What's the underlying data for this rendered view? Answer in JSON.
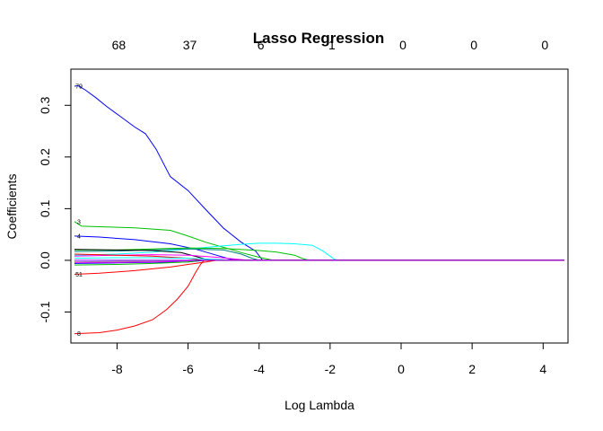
{
  "chart_data": {
    "type": "line",
    "title": "Lasso Regression",
    "xlabel": "Log Lambda",
    "ylabel": "Coefficients",
    "xlim": [
      -9.3,
      4.7
    ],
    "ylim": [
      -0.16,
      0.37
    ],
    "x_ticks": [
      -8,
      -6,
      -4,
      -2,
      0,
      2,
      4
    ],
    "y_ticks": [
      -0.1,
      0.0,
      0.1,
      0.2,
      0.3
    ],
    "y_tick_labels": [
      "-0.1",
      "0.0",
      "0.1",
      "0.2",
      "0.3"
    ],
    "top_axis": {
      "label_positions": [
        -7.95,
        -5.95,
        -3.95,
        -1.95,
        0.05,
        2.05,
        4.05
      ],
      "labels": [
        "68",
        "37",
        "6",
        "1",
        "0",
        "0",
        "0"
      ]
    },
    "grid": false,
    "series": [
      {
        "label": "79",
        "color": "#0000ff",
        "points": [
          [
            -9.2,
            0.337
          ],
          [
            -9.1,
            0.338
          ],
          [
            -8.9,
            0.33
          ],
          [
            -8.6,
            0.315
          ],
          [
            -8.3,
            0.298
          ],
          [
            -7.9,
            0.278
          ],
          [
            -7.5,
            0.258
          ],
          [
            -7.2,
            0.245
          ],
          [
            -6.9,
            0.215
          ],
          [
            -6.5,
            0.162
          ],
          [
            -6.0,
            0.135
          ],
          [
            -5.5,
            0.098
          ],
          [
            -5.0,
            0.062
          ],
          [
            -4.5,
            0.035
          ],
          [
            -4.1,
            0.018
          ],
          [
            -3.9,
            0.0
          ],
          [
            4.6,
            0.0
          ]
        ]
      },
      {
        "label": "3",
        "color": "#00c000",
        "points": [
          [
            -9.2,
            0.075
          ],
          [
            -9.0,
            0.066
          ],
          [
            -8.5,
            0.065
          ],
          [
            -7.5,
            0.063
          ],
          [
            -6.5,
            0.058
          ],
          [
            -6.0,
            0.047
          ],
          [
            -5.5,
            0.035
          ],
          [
            -5.0,
            0.025
          ],
          [
            -4.5,
            0.015
          ],
          [
            -4.0,
            0.006
          ],
          [
            -3.6,
            0.0
          ],
          [
            4.6,
            0.0
          ]
        ]
      },
      {
        "label": "4",
        "color": "#0000ff",
        "points": [
          [
            -9.2,
            0.047
          ],
          [
            -8.5,
            0.045
          ],
          [
            -7.5,
            0.04
          ],
          [
            -6.5,
            0.032
          ],
          [
            -5.8,
            0.022
          ],
          [
            -5.2,
            0.01
          ],
          [
            -4.8,
            0.002
          ],
          [
            -4.6,
            0.0
          ],
          [
            4.6,
            0.0
          ]
        ]
      },
      {
        "label": "",
        "color": "#00ffff",
        "points": [
          [
            -9.2,
            0.01
          ],
          [
            -8.0,
            0.012
          ],
          [
            -7.0,
            0.016
          ],
          [
            -6.0,
            0.022
          ],
          [
            -5.0,
            0.028
          ],
          [
            -4.5,
            0.031
          ],
          [
            -4.0,
            0.033
          ],
          [
            -3.5,
            0.033
          ],
          [
            -3.0,
            0.032
          ],
          [
            -2.5,
            0.029
          ],
          [
            -2.2,
            0.018
          ],
          [
            -1.9,
            0.003
          ],
          [
            -1.8,
            0.0
          ],
          [
            4.6,
            0.0
          ]
        ]
      },
      {
        "label": "",
        "color": "#00c000",
        "points": [
          [
            -9.2,
            0.02
          ],
          [
            -8.0,
            0.02
          ],
          [
            -7.0,
            0.022
          ],
          [
            -6.0,
            0.024
          ],
          [
            -5.0,
            0.023
          ],
          [
            -4.0,
            0.019
          ],
          [
            -3.5,
            0.016
          ],
          [
            -3.0,
            0.01
          ],
          [
            -2.8,
            0.004
          ],
          [
            -2.6,
            0.0
          ],
          [
            4.6,
            0.0
          ]
        ]
      },
      {
        "label": "",
        "color": "#008080",
        "points": [
          [
            -9.2,
            0.017
          ],
          [
            -8.0,
            0.018
          ],
          [
            -7.0,
            0.02
          ],
          [
            -6.0,
            0.022
          ],
          [
            -5.0,
            0.02
          ],
          [
            -4.5,
            0.012
          ],
          [
            -4.2,
            0.004
          ],
          [
            -4.0,
            0.0
          ],
          [
            4.6,
            0.0
          ]
        ]
      },
      {
        "label": "",
        "color": "#000000",
        "points": [
          [
            -9.2,
            0.021
          ],
          [
            -8.0,
            0.02
          ],
          [
            -7.0,
            0.019
          ],
          [
            -6.2,
            0.015
          ],
          [
            -5.7,
            0.006
          ],
          [
            -5.4,
            0.0
          ],
          [
            4.6,
            0.0
          ]
        ]
      },
      {
        "label": "",
        "color": "#ff00ff",
        "points": [
          [
            -9.2,
            0.008
          ],
          [
            -8.0,
            0.01
          ],
          [
            -7.0,
            0.011
          ],
          [
            -6.0,
            0.01
          ],
          [
            -5.2,
            0.006
          ],
          [
            -4.6,
            0.002
          ],
          [
            -4.3,
            0.0
          ],
          [
            4.6,
            0.0
          ]
        ]
      },
      {
        "label": "",
        "color": "#ff0000",
        "points": [
          [
            -9.2,
            0.012
          ],
          [
            -8.0,
            0.01
          ],
          [
            -7.0,
            0.008
          ],
          [
            -6.0,
            0.004
          ],
          [
            -5.6,
            0.0
          ],
          [
            4.6,
            0.0
          ]
        ]
      },
      {
        "label": "",
        "color": "#808080",
        "points": [
          [
            -9.2,
            -0.003
          ],
          [
            -8.0,
            -0.002
          ],
          [
            -7.0,
            -0.002
          ],
          [
            -6.0,
            -0.001
          ],
          [
            -5.5,
            0.0
          ],
          [
            4.6,
            0.0
          ]
        ]
      },
      {
        "label": "",
        "color": "#0000ff",
        "points": [
          [
            -9.2,
            -0.006
          ],
          [
            -8.0,
            -0.005
          ],
          [
            -7.0,
            -0.004
          ],
          [
            -6.0,
            -0.003
          ],
          [
            -5.5,
            0.0
          ],
          [
            4.6,
            0.0
          ]
        ]
      },
      {
        "label": "",
        "color": "#00c000",
        "points": [
          [
            -9.2,
            -0.009
          ],
          [
            -8.0,
            -0.008
          ],
          [
            -7.0,
            -0.006
          ],
          [
            -6.0,
            -0.003
          ],
          [
            -5.6,
            0.0
          ],
          [
            4.6,
            0.0
          ]
        ]
      },
      {
        "label": "",
        "color": "#00ffff",
        "points": [
          [
            -9.2,
            0.004
          ],
          [
            -8.0,
            0.005
          ],
          [
            -7.0,
            0.005
          ],
          [
            -6.0,
            0.004
          ],
          [
            -5.0,
            0.001
          ],
          [
            -4.8,
            0.0
          ],
          [
            4.6,
            0.0
          ]
        ]
      },
      {
        "label": "",
        "color": "#ff00ff",
        "points": [
          [
            -9.2,
            -0.004
          ],
          [
            -8.0,
            -0.004
          ],
          [
            -7.0,
            -0.003
          ],
          [
            -6.0,
            -0.001
          ],
          [
            -5.7,
            0.0
          ],
          [
            4.6,
            0.0
          ]
        ]
      },
      {
        "label": "51",
        "color": "#ff0000",
        "points": [
          [
            -9.2,
            -0.027
          ],
          [
            -8.5,
            -0.025
          ],
          [
            -7.5,
            -0.02
          ],
          [
            -6.5,
            -0.013
          ],
          [
            -6.0,
            -0.008
          ],
          [
            -5.5,
            -0.003
          ],
          [
            -5.2,
            0.0
          ],
          [
            4.6,
            0.0
          ]
        ]
      },
      {
        "label": "8",
        "color": "#ff0000",
        "points": [
          [
            -9.2,
            -0.142
          ],
          [
            -8.5,
            -0.14
          ],
          [
            -8.0,
            -0.135
          ],
          [
            -7.5,
            -0.127
          ],
          [
            -7.0,
            -0.115
          ],
          [
            -6.6,
            -0.095
          ],
          [
            -6.3,
            -0.075
          ],
          [
            -6.0,
            -0.05
          ],
          [
            -5.8,
            -0.025
          ],
          [
            -5.65,
            -0.008
          ],
          [
            -5.55,
            0.0
          ],
          [
            4.6,
            0.0
          ]
        ]
      },
      {
        "label": "",
        "color": "#8000ff",
        "points": [
          [
            -9.2,
            0.0
          ],
          [
            4.6,
            0.0
          ]
        ]
      }
    ]
  }
}
